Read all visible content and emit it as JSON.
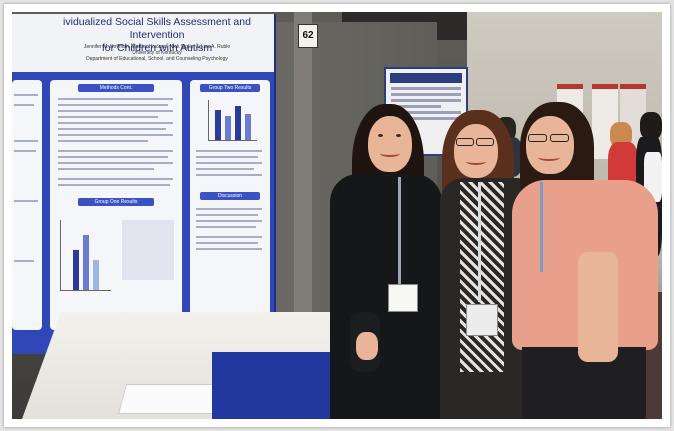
{
  "photo": {
    "description_free": true,
    "poster": {
      "title_line1": "ividualized Social Skills Assessment and Intervention",
      "title_line2": "for Children with Autism",
      "authors": "Jennifer M. Hoffman, Martha Hovland, Nick Sigler, & Lisa A. Ruble",
      "affiliation": "University of Kentucky",
      "department": "Department of Educational, School, and Counseling Psychology",
      "panel_methods": "Methods Cont.",
      "panel_group_one": "Group One Results",
      "panel_group_two": "Group Two Results",
      "panel_discussion": "Discussion",
      "board_number": "62",
      "colors": {
        "poster_blue": "#2f47b7",
        "poster_white": "#f2f3f6"
      }
    },
    "people_count": 3,
    "icons": [
      "lanyard-badge",
      "ceiling-light"
    ]
  }
}
